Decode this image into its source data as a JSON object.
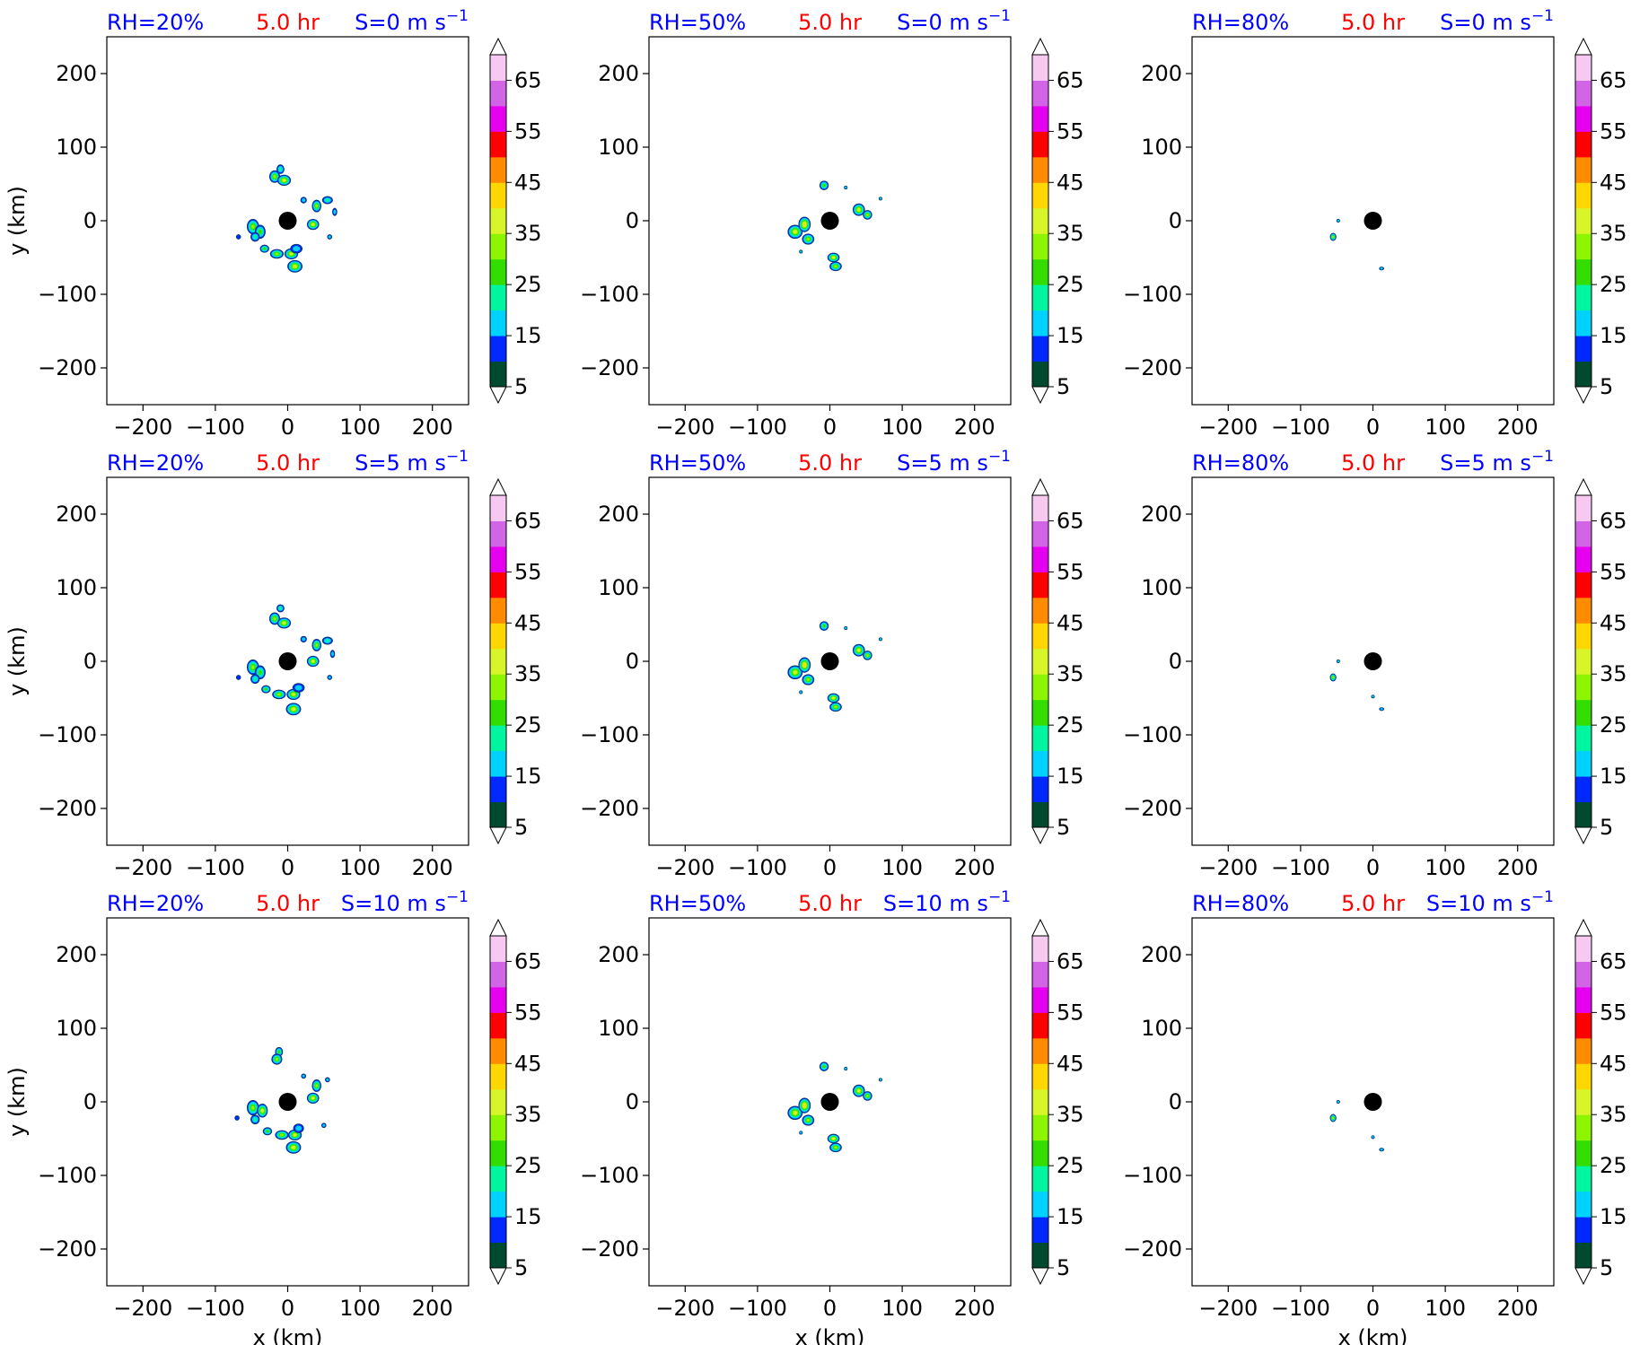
{
  "colors": {
    "title_left": "#0000ff",
    "title_center": "#ff0000",
    "title_right": "#0000ff",
    "center_marker": "#000000",
    "colorbar_levels": [
      "#004a2f",
      "#0028ff",
      "#00d2ff",
      "#00f5a0",
      "#33dd00",
      "#8ef500",
      "#d8f52a",
      "#ffd700",
      "#ff8c00",
      "#ff0000",
      "#e600f0",
      "#d264e6",
      "#f7c8f0"
    ]
  },
  "chart_data": [
    {
      "type": "contour",
      "row": 0,
      "col": 0,
      "title_left": "RH=20%",
      "title_center": "5.0 hr",
      "title_right_prefix": "S=0 m s",
      "title_right_sup": "−1",
      "ylabel": "y (km)",
      "xlabel": "",
      "xlim": [
        -250,
        250
      ],
      "ylim": [
        -250,
        250
      ],
      "xticks": [
        -200,
        -100,
        0,
        100,
        200
      ],
      "yticks": [
        -200,
        -100,
        0,
        100,
        200
      ],
      "xtick_labels": [
        "−200",
        "−100",
        "0",
        "100",
        "200"
      ],
      "ytick_labels": [
        "−200",
        "−100",
        "0",
        "100",
        "200"
      ],
      "colorbar_ticks": [
        "5",
        "15",
        "25",
        "35",
        "45",
        "55",
        "65"
      ],
      "center_marker": [
        0,
        0
      ],
      "cells": [
        [
          -10,
          70,
          5,
          6,
          15
        ],
        [
          -18,
          60,
          7,
          8,
          25
        ],
        [
          -5,
          55,
          9,
          7,
          30
        ],
        [
          -48,
          -8,
          8,
          10,
          25
        ],
        [
          -38,
          -15,
          7,
          9,
          20
        ],
        [
          -45,
          -22,
          6,
          6,
          15
        ],
        [
          -32,
          -38,
          6,
          5,
          20
        ],
        [
          -15,
          -45,
          9,
          6,
          25
        ],
        [
          5,
          -45,
          9,
          7,
          30
        ],
        [
          12,
          -38,
          8,
          6,
          10
        ],
        [
          10,
          -62,
          10,
          8,
          30
        ],
        [
          40,
          20,
          6,
          8,
          25
        ],
        [
          35,
          -5,
          8,
          7,
          30
        ],
        [
          55,
          28,
          7,
          5,
          15
        ],
        [
          65,
          12,
          3,
          5,
          10
        ],
        [
          22,
          28,
          4,
          4,
          10
        ],
        [
          -68,
          -22,
          3,
          3,
          5
        ],
        [
          58,
          -22,
          3,
          3,
          10
        ]
      ]
    },
    {
      "type": "contour",
      "row": 0,
      "col": 1,
      "title_left": "RH=50%",
      "title_center": "5.0 hr",
      "title_right_prefix": "S=0 m s",
      "title_right_sup": "−1",
      "ylabel": "",
      "xlabel": "",
      "xlim": [
        -250,
        250
      ],
      "ylim": [
        -250,
        250
      ],
      "xticks": [
        -200,
        -100,
        0,
        100,
        200
      ],
      "yticks": [
        -200,
        -100,
        0,
        100,
        200
      ],
      "xtick_labels": [
        "−200",
        "−100",
        "0",
        "100",
        "200"
      ],
      "ytick_labels": [
        "−200",
        "−100",
        "0",
        "100",
        "200"
      ],
      "colorbar_ticks": [
        "5",
        "15",
        "25",
        "35",
        "45",
        "55",
        "65"
      ],
      "center_marker": [
        0,
        0
      ],
      "cells": [
        [
          -8,
          48,
          6,
          6,
          20
        ],
        [
          -48,
          -15,
          10,
          9,
          30
        ],
        [
          -35,
          -5,
          8,
          10,
          35
        ],
        [
          -30,
          -25,
          8,
          7,
          25
        ],
        [
          5,
          -50,
          8,
          6,
          30
        ],
        [
          8,
          -62,
          8,
          6,
          25
        ],
        [
          40,
          15,
          8,
          8,
          30
        ],
        [
          52,
          8,
          6,
          6,
          25
        ],
        [
          70,
          30,
          2,
          2,
          10
        ],
        [
          22,
          45,
          2,
          2,
          10
        ],
        [
          -40,
          -42,
          2,
          2,
          10
        ]
      ]
    },
    {
      "type": "contour",
      "row": 0,
      "col": 2,
      "title_left": "RH=80%",
      "title_center": "5.0 hr",
      "title_right_prefix": "S=0 m s",
      "title_right_sup": "−1",
      "ylabel": "",
      "xlabel": "",
      "xlim": [
        -250,
        250
      ],
      "ylim": [
        -250,
        250
      ],
      "xticks": [
        -200,
        -100,
        0,
        100,
        200
      ],
      "yticks": [
        -200,
        -100,
        0,
        100,
        200
      ],
      "xtick_labels": [
        "−200",
        "−100",
        "0",
        "100",
        "200"
      ],
      "ytick_labels": [
        "−200",
        "−100",
        "0",
        "100",
        "200"
      ],
      "colorbar_ticks": [
        "5",
        "15",
        "25",
        "35",
        "45",
        "55",
        "65"
      ],
      "center_marker": [
        0,
        0
      ],
      "cells": [
        [
          -55,
          -22,
          4,
          5,
          25
        ],
        [
          -48,
          0,
          2,
          2,
          10
        ],
        [
          12,
          -65,
          3,
          2,
          10
        ]
      ]
    },
    {
      "type": "contour",
      "row": 1,
      "col": 0,
      "title_left": "RH=20%",
      "title_center": "5.0 hr",
      "title_right_prefix": "S=5 m s",
      "title_right_sup": "−1",
      "ylabel": "y (km)",
      "xlabel": "",
      "xlim": [
        -250,
        250
      ],
      "ylim": [
        -250,
        250
      ],
      "xticks": [
        -200,
        -100,
        0,
        100,
        200
      ],
      "yticks": [
        -200,
        -100,
        0,
        100,
        200
      ],
      "xtick_labels": [
        "−200",
        "−100",
        "0",
        "100",
        "200"
      ],
      "ytick_labels": [
        "−200",
        "−100",
        "0",
        "100",
        "200"
      ],
      "colorbar_ticks": [
        "5",
        "15",
        "25",
        "35",
        "45",
        "55",
        "65"
      ],
      "center_marker": [
        0,
        0
      ],
      "cells": [
        [
          -10,
          72,
          5,
          5,
          15
        ],
        [
          -18,
          58,
          7,
          8,
          25
        ],
        [
          -5,
          52,
          9,
          7,
          30
        ],
        [
          -48,
          -8,
          8,
          10,
          25
        ],
        [
          -38,
          -15,
          7,
          9,
          20
        ],
        [
          -45,
          -24,
          6,
          6,
          15
        ],
        [
          -30,
          -38,
          6,
          5,
          20
        ],
        [
          -12,
          -45,
          9,
          6,
          25
        ],
        [
          8,
          -45,
          9,
          7,
          30
        ],
        [
          15,
          -36,
          8,
          6,
          10
        ],
        [
          8,
          -65,
          10,
          8,
          30
        ],
        [
          40,
          22,
          6,
          8,
          25
        ],
        [
          35,
          0,
          8,
          7,
          30
        ],
        [
          55,
          28,
          7,
          5,
          15
        ],
        [
          62,
          10,
          3,
          5,
          10
        ],
        [
          22,
          30,
          4,
          4,
          10
        ],
        [
          -68,
          -22,
          3,
          3,
          5
        ],
        [
          58,
          -22,
          3,
          3,
          10
        ]
      ]
    },
    {
      "type": "contour",
      "row": 1,
      "col": 1,
      "title_left": "RH=50%",
      "title_center": "5.0 hr",
      "title_right_prefix": "S=5 m s",
      "title_right_sup": "−1",
      "ylabel": "",
      "xlabel": "",
      "xlim": [
        -250,
        250
      ],
      "ylim": [
        -250,
        250
      ],
      "xticks": [
        -200,
        -100,
        0,
        100,
        200
      ],
      "yticks": [
        -200,
        -100,
        0,
        100,
        200
      ],
      "xtick_labels": [
        "−200",
        "−100",
        "0",
        "100",
        "200"
      ],
      "ytick_labels": [
        "−200",
        "−100",
        "0",
        "100",
        "200"
      ],
      "colorbar_ticks": [
        "5",
        "15",
        "25",
        "35",
        "45",
        "55",
        "65"
      ],
      "center_marker": [
        0,
        0
      ],
      "cells": [
        [
          -8,
          48,
          6,
          6,
          20
        ],
        [
          -48,
          -15,
          10,
          9,
          30
        ],
        [
          -35,
          -5,
          8,
          10,
          35
        ],
        [
          -30,
          -25,
          8,
          7,
          25
        ],
        [
          5,
          -50,
          8,
          6,
          30
        ],
        [
          8,
          -62,
          8,
          6,
          25
        ],
        [
          40,
          15,
          8,
          8,
          30
        ],
        [
          52,
          8,
          6,
          6,
          25
        ],
        [
          70,
          30,
          2,
          2,
          10
        ],
        [
          22,
          45,
          2,
          2,
          10
        ],
        [
          -40,
          -42,
          2,
          2,
          10
        ]
      ]
    },
    {
      "type": "contour",
      "row": 1,
      "col": 2,
      "title_left": "RH=80%",
      "title_center": "5.0 hr",
      "title_right_prefix": "S=5 m s",
      "title_right_sup": "−1",
      "ylabel": "",
      "xlabel": "",
      "xlim": [
        -250,
        250
      ],
      "ylim": [
        -250,
        250
      ],
      "xticks": [
        -200,
        -100,
        0,
        100,
        200
      ],
      "yticks": [
        -200,
        -100,
        0,
        100,
        200
      ],
      "xtick_labels": [
        "−200",
        "−100",
        "0",
        "100",
        "200"
      ],
      "ytick_labels": [
        "−200",
        "−100",
        "0",
        "100",
        "200"
      ],
      "colorbar_ticks": [
        "5",
        "15",
        "25",
        "35",
        "45",
        "55",
        "65"
      ],
      "center_marker": [
        0,
        0
      ],
      "cells": [
        [
          -55,
          -22,
          4,
          5,
          25
        ],
        [
          -48,
          0,
          2,
          2,
          10
        ],
        [
          0,
          -48,
          2,
          2,
          10
        ],
        [
          12,
          -65,
          3,
          2,
          10
        ]
      ]
    },
    {
      "type": "contour",
      "row": 2,
      "col": 0,
      "title_left": "RH=20%",
      "title_center": "5.0 hr",
      "title_right_prefix": "S=10 m s",
      "title_right_sup": "−1",
      "ylabel": "y (km)",
      "xlabel": "x (km)",
      "xlim": [
        -250,
        250
      ],
      "ylim": [
        -250,
        250
      ],
      "xticks": [
        -200,
        -100,
        0,
        100,
        200
      ],
      "yticks": [
        -200,
        -100,
        0,
        100,
        200
      ],
      "xtick_labels": [
        "−200",
        "−100",
        "0",
        "100",
        "200"
      ],
      "ytick_labels": [
        "−200",
        "−100",
        "0",
        "100",
        "200"
      ],
      "colorbar_ticks": [
        "5",
        "15",
        "25",
        "35",
        "45",
        "55",
        "65"
      ],
      "center_marker": [
        0,
        0
      ],
      "cells": [
        [
          -12,
          68,
          5,
          6,
          20
        ],
        [
          -15,
          58,
          7,
          7,
          25
        ],
        [
          -48,
          -8,
          8,
          10,
          25
        ],
        [
          -35,
          -12,
          7,
          9,
          30
        ],
        [
          -45,
          -24,
          6,
          6,
          15
        ],
        [
          -28,
          -40,
          6,
          5,
          20
        ],
        [
          -8,
          -45,
          9,
          6,
          25
        ],
        [
          10,
          -45,
          9,
          7,
          30
        ],
        [
          15,
          -36,
          7,
          6,
          10
        ],
        [
          8,
          -62,
          10,
          8,
          30
        ],
        [
          40,
          22,
          6,
          8,
          25
        ],
        [
          35,
          5,
          8,
          7,
          30
        ],
        [
          55,
          30,
          3,
          3,
          10
        ],
        [
          22,
          35,
          3,
          3,
          10
        ],
        [
          -70,
          -22,
          3,
          3,
          5
        ],
        [
          50,
          -32,
          3,
          3,
          10
        ]
      ]
    },
    {
      "type": "contour",
      "row": 2,
      "col": 1,
      "title_left": "RH=50%",
      "title_center": "5.0 hr",
      "title_right_prefix": "S=10 m s",
      "title_right_sup": "−1",
      "ylabel": "",
      "xlabel": "x (km)",
      "xlim": [
        -250,
        250
      ],
      "ylim": [
        -250,
        250
      ],
      "xticks": [
        -200,
        -100,
        0,
        100,
        200
      ],
      "yticks": [
        -200,
        -100,
        0,
        100,
        200
      ],
      "xtick_labels": [
        "−200",
        "−100",
        "0",
        "100",
        "200"
      ],
      "ytick_labels": [
        "−200",
        "−100",
        "0",
        "100",
        "200"
      ],
      "colorbar_ticks": [
        "5",
        "15",
        "25",
        "35",
        "45",
        "55",
        "65"
      ],
      "center_marker": [
        0,
        0
      ],
      "cells": [
        [
          -8,
          48,
          6,
          6,
          20
        ],
        [
          -48,
          -15,
          10,
          9,
          30
        ],
        [
          -35,
          -5,
          8,
          10,
          35
        ],
        [
          -30,
          -25,
          8,
          7,
          25
        ],
        [
          5,
          -50,
          8,
          6,
          30
        ],
        [
          8,
          -62,
          8,
          6,
          25
        ],
        [
          40,
          15,
          8,
          8,
          30
        ],
        [
          52,
          8,
          6,
          6,
          25
        ],
        [
          70,
          30,
          2,
          2,
          10
        ],
        [
          22,
          45,
          2,
          2,
          10
        ],
        [
          -40,
          -42,
          2,
          2,
          10
        ]
      ]
    },
    {
      "type": "contour",
      "row": 2,
      "col": 2,
      "title_left": "RH=80%",
      "title_center": "5.0 hr",
      "title_right_prefix": "S=10 m s",
      "title_right_sup": "−1",
      "ylabel": "",
      "xlabel": "x (km)",
      "xlim": [
        -250,
        250
      ],
      "ylim": [
        -250,
        250
      ],
      "xticks": [
        -200,
        -100,
        0,
        100,
        200
      ],
      "yticks": [
        -200,
        -100,
        0,
        100,
        200
      ],
      "xtick_labels": [
        "−200",
        "−100",
        "0",
        "100",
        "200"
      ],
      "ytick_labels": [
        "−200",
        "−100",
        "0",
        "100",
        "200"
      ],
      "colorbar_ticks": [
        "5",
        "15",
        "25",
        "35",
        "45",
        "55",
        "65"
      ],
      "center_marker": [
        0,
        0
      ],
      "cells": [
        [
          -55,
          -22,
          4,
          5,
          25
        ],
        [
          -48,
          0,
          2,
          2,
          10
        ],
        [
          0,
          -48,
          2,
          2,
          10
        ],
        [
          12,
          -65,
          3,
          2,
          10
        ]
      ]
    }
  ]
}
